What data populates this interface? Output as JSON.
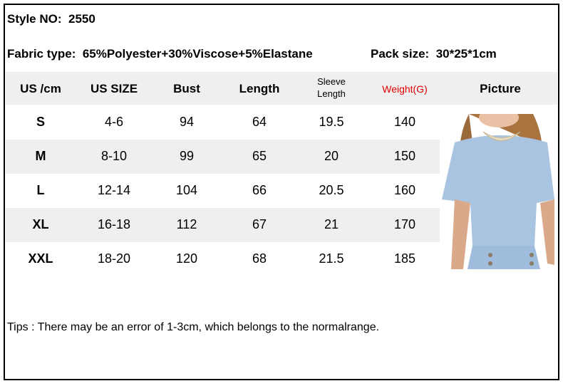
{
  "style_no": {
    "label": "Style NO:",
    "value": "2550"
  },
  "fabric": {
    "label": "Fabric type:",
    "value": "65%Polyester+30%Viscose+5%Elastane"
  },
  "pack": {
    "label": "Pack size:",
    "value": "30*25*1cm"
  },
  "headers": [
    "US /cm",
    "US SIZE",
    "Bust",
    "Length",
    "Sleeve",
    "Length",
    "Weight(G)",
    "Picture"
  ],
  "rows": [
    [
      "S",
      "4-6",
      "94",
      "64",
      "19.5",
      "140"
    ],
    [
      "M",
      "8-10",
      "99",
      "65",
      "20",
      "150"
    ],
    [
      "L",
      "12-14",
      "104",
      "66",
      "20.5",
      "160"
    ],
    [
      "XL",
      "16-18",
      "112",
      "67",
      "21",
      "170"
    ],
    [
      "XXL",
      "18-20",
      "120",
      "68",
      "21.5",
      "185"
    ]
  ],
  "tips": "Tips : There may be an error of 1-3cm, which belongs to the normalrange.",
  "colors": {
    "weight_header": "#e00000",
    "stripe": "#efefef",
    "garment": "#a9c4e0"
  }
}
